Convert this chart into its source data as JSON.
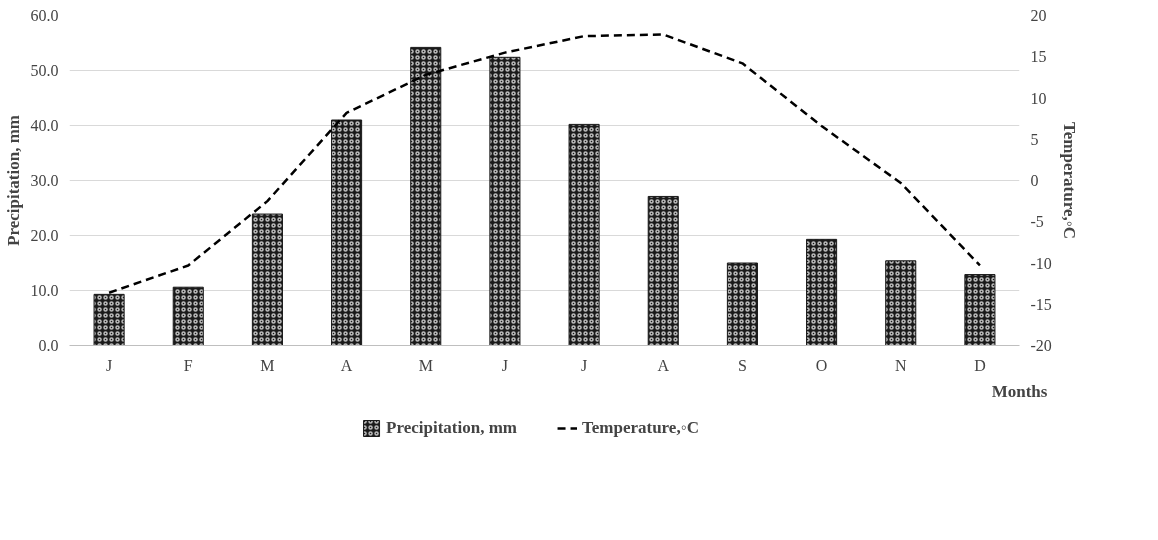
{
  "chart_data": {
    "type": "bar",
    "xlabel": "Months",
    "ylabel": "Precipitation, mm",
    "y2label": "Temperature,◦C",
    "categories": [
      "J",
      "F",
      "M",
      "A",
      "M",
      "J",
      "J",
      "A",
      "S",
      "O",
      "N",
      "D"
    ],
    "series": [
      {
        "name": "Precipitation, mm",
        "color": "#1a1a1a",
        "values": [
          9.3,
          10.6,
          23.9,
          41.0,
          54.2,
          52.4,
          40.2,
          27.1,
          15.0,
          19.3,
          15.4,
          12.9
        ]
      },
      {
        "name": "Temperature,◦C",
        "type": "line",
        "axis": "y2",
        "color": "#000000",
        "line_style": "dashed",
        "values": [
          -13.6,
          -10.3,
          -2.5,
          8.2,
          12.8,
          15.5,
          17.5,
          17.7,
          14.2,
          6.6,
          -0.3,
          -10.3
        ]
      }
    ],
    "ylim": [
      0,
      60
    ],
    "yticks": [
      {
        "value": 0,
        "label": "0.0"
      },
      {
        "value": 10,
        "label": "10.0"
      },
      {
        "value": 20,
        "label": "20.0"
      },
      {
        "value": 30,
        "label": "30.0"
      },
      {
        "value": 40,
        "label": "40.0"
      },
      {
        "value": 50,
        "label": "50.0"
      },
      {
        "value": 60,
        "label": "60.0"
      }
    ],
    "y2lim": [
      -20,
      20
    ],
    "y2ticks": [
      -20,
      -15,
      -10,
      -5,
      0,
      5,
      10,
      15,
      20
    ],
    "grid": "y",
    "legend": "bottom"
  }
}
